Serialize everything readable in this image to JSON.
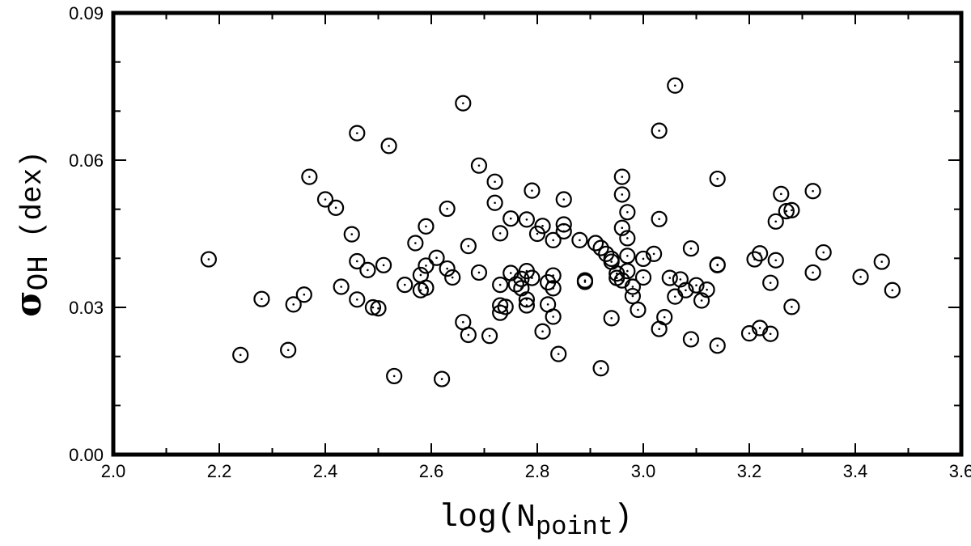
{
  "chart_data": {
    "type": "scatter",
    "xlabel": {
      "main": "log(N",
      "sub": "point",
      "close": ")"
    },
    "ylabel": {
      "symbol": "σ",
      "sub": "OH",
      "unit": "(dex)"
    },
    "xlim": [
      2.0,
      3.6
    ],
    "ylim": [
      0.0,
      0.09
    ],
    "x_ticks": [
      "2.0",
      "2.2",
      "2.4",
      "2.6",
      "2.8",
      "3.0",
      "3.2",
      "3.4",
      "3.6"
    ],
    "x_tick_values": [
      2.0,
      2.2,
      2.4,
      2.6,
      2.8,
      3.0,
      3.2,
      3.4,
      3.6
    ],
    "y_ticks": [
      "0.00",
      "0.03",
      "0.06",
      "0.09"
    ],
    "y_tick_values": [
      0.0,
      0.03,
      0.06,
      0.09
    ],
    "grid": false,
    "marker": "circle-dot",
    "points": [
      [
        2.18,
        0.0398
      ],
      [
        2.24,
        0.0203
      ],
      [
        2.28,
        0.0317
      ],
      [
        2.33,
        0.0213
      ],
      [
        2.34,
        0.0306
      ],
      [
        2.36,
        0.0326
      ],
      [
        2.37,
        0.0566
      ],
      [
        2.4,
        0.052
      ],
      [
        2.42,
        0.0503
      ],
      [
        2.43,
        0.0342
      ],
      [
        2.45,
        0.0449
      ],
      [
        2.46,
        0.0394
      ],
      [
        2.46,
        0.0655
      ],
      [
        2.46,
        0.0316
      ],
      [
        2.48,
        0.0376
      ],
      [
        2.49,
        0.03
      ],
      [
        2.5,
        0.0298
      ],
      [
        2.51,
        0.0386
      ],
      [
        2.52,
        0.0629
      ],
      [
        2.53,
        0.016
      ],
      [
        2.55,
        0.0346
      ],
      [
        2.57,
        0.0431
      ],
      [
        2.58,
        0.0335
      ],
      [
        2.58,
        0.0366
      ],
      [
        2.59,
        0.0385
      ],
      [
        2.59,
        0.034
      ],
      [
        2.59,
        0.0465
      ],
      [
        2.61,
        0.0401
      ],
      [
        2.62,
        0.0154
      ],
      [
        2.63,
        0.0501
      ],
      [
        2.63,
        0.0379
      ],
      [
        2.64,
        0.0361
      ],
      [
        2.66,
        0.027
      ],
      [
        2.66,
        0.0716
      ],
      [
        2.67,
        0.0244
      ],
      [
        2.67,
        0.0425
      ],
      [
        2.69,
        0.0589
      ],
      [
        2.69,
        0.0371
      ],
      [
        2.71,
        0.0242
      ],
      [
        2.72,
        0.0556
      ],
      [
        2.72,
        0.0513
      ],
      [
        2.73,
        0.0346
      ],
      [
        2.73,
        0.0289
      ],
      [
        2.73,
        0.0304
      ],
      [
        2.73,
        0.0451
      ],
      [
        2.74,
        0.0301
      ],
      [
        2.75,
        0.037
      ],
      [
        2.75,
        0.0481
      ],
      [
        2.76,
        0.0347
      ],
      [
        2.77,
        0.0358
      ],
      [
        2.77,
        0.0339
      ],
      [
        2.78,
        0.0316
      ],
      [
        2.78,
        0.0304
      ],
      [
        2.78,
        0.0374
      ],
      [
        2.78,
        0.0479
      ],
      [
        2.79,
        0.0538
      ],
      [
        2.79,
        0.036
      ],
      [
        2.8,
        0.045
      ],
      [
        2.81,
        0.0251
      ],
      [
        2.81,
        0.0466
      ],
      [
        2.82,
        0.0306
      ],
      [
        2.82,
        0.0351
      ],
      [
        2.83,
        0.0339
      ],
      [
        2.83,
        0.0281
      ],
      [
        2.83,
        0.0365
      ],
      [
        2.83,
        0.0437
      ],
      [
        2.84,
        0.0205
      ],
      [
        2.85,
        0.0469
      ],
      [
        2.85,
        0.0455
      ],
      [
        2.85,
        0.052
      ],
      [
        2.88,
        0.0437
      ],
      [
        2.89,
        0.0355
      ],
      [
        2.89,
        0.0352
      ],
      [
        2.91,
        0.0431
      ],
      [
        2.92,
        0.0421
      ],
      [
        2.92,
        0.0176
      ],
      [
        2.93,
        0.0409
      ],
      [
        2.94,
        0.0399
      ],
      [
        2.94,
        0.0393
      ],
      [
        2.94,
        0.0278
      ],
      [
        2.95,
        0.036
      ],
      [
        2.95,
        0.0369
      ],
      [
        2.96,
        0.0566
      ],
      [
        2.96,
        0.053
      ],
      [
        2.96,
        0.0355
      ],
      [
        2.96,
        0.0462
      ],
      [
        2.97,
        0.0494
      ],
      [
        2.97,
        0.0441
      ],
      [
        2.97,
        0.0405
      ],
      [
        2.97,
        0.0374
      ],
      [
        2.98,
        0.0342
      ],
      [
        2.98,
        0.0323
      ],
      [
        2.99,
        0.0295
      ],
      [
        3.0,
        0.0399
      ],
      [
        3.0,
        0.0361
      ],
      [
        3.02,
        0.0409
      ],
      [
        3.03,
        0.048
      ],
      [
        3.03,
        0.066
      ],
      [
        3.03,
        0.0256
      ],
      [
        3.04,
        0.028
      ],
      [
        3.05,
        0.036
      ],
      [
        3.06,
        0.0752
      ],
      [
        3.06,
        0.0322
      ],
      [
        3.07,
        0.0357
      ],
      [
        3.08,
        0.0335
      ],
      [
        3.09,
        0.042
      ],
      [
        3.09,
        0.0235
      ],
      [
        3.1,
        0.0345
      ],
      [
        3.11,
        0.0314
      ],
      [
        3.12,
        0.0336
      ],
      [
        3.14,
        0.0387
      ],
      [
        3.14,
        0.0386
      ],
      [
        3.14,
        0.0562
      ],
      [
        3.14,
        0.0222
      ],
      [
        3.2,
        0.0247
      ],
      [
        3.21,
        0.0398
      ],
      [
        3.22,
        0.0258
      ],
      [
        3.22,
        0.041
      ],
      [
        3.24,
        0.0246
      ],
      [
        3.24,
        0.035
      ],
      [
        3.25,
        0.0475
      ],
      [
        3.25,
        0.0396
      ],
      [
        3.26,
        0.0531
      ],
      [
        3.27,
        0.0496
      ],
      [
        3.28,
        0.0301
      ],
      [
        3.28,
        0.0498
      ],
      [
        3.32,
        0.0371
      ],
      [
        3.32,
        0.0537
      ],
      [
        3.34,
        0.0412
      ],
      [
        3.41,
        0.0362
      ],
      [
        3.45,
        0.0393
      ],
      [
        3.47,
        0.0335
      ]
    ]
  }
}
